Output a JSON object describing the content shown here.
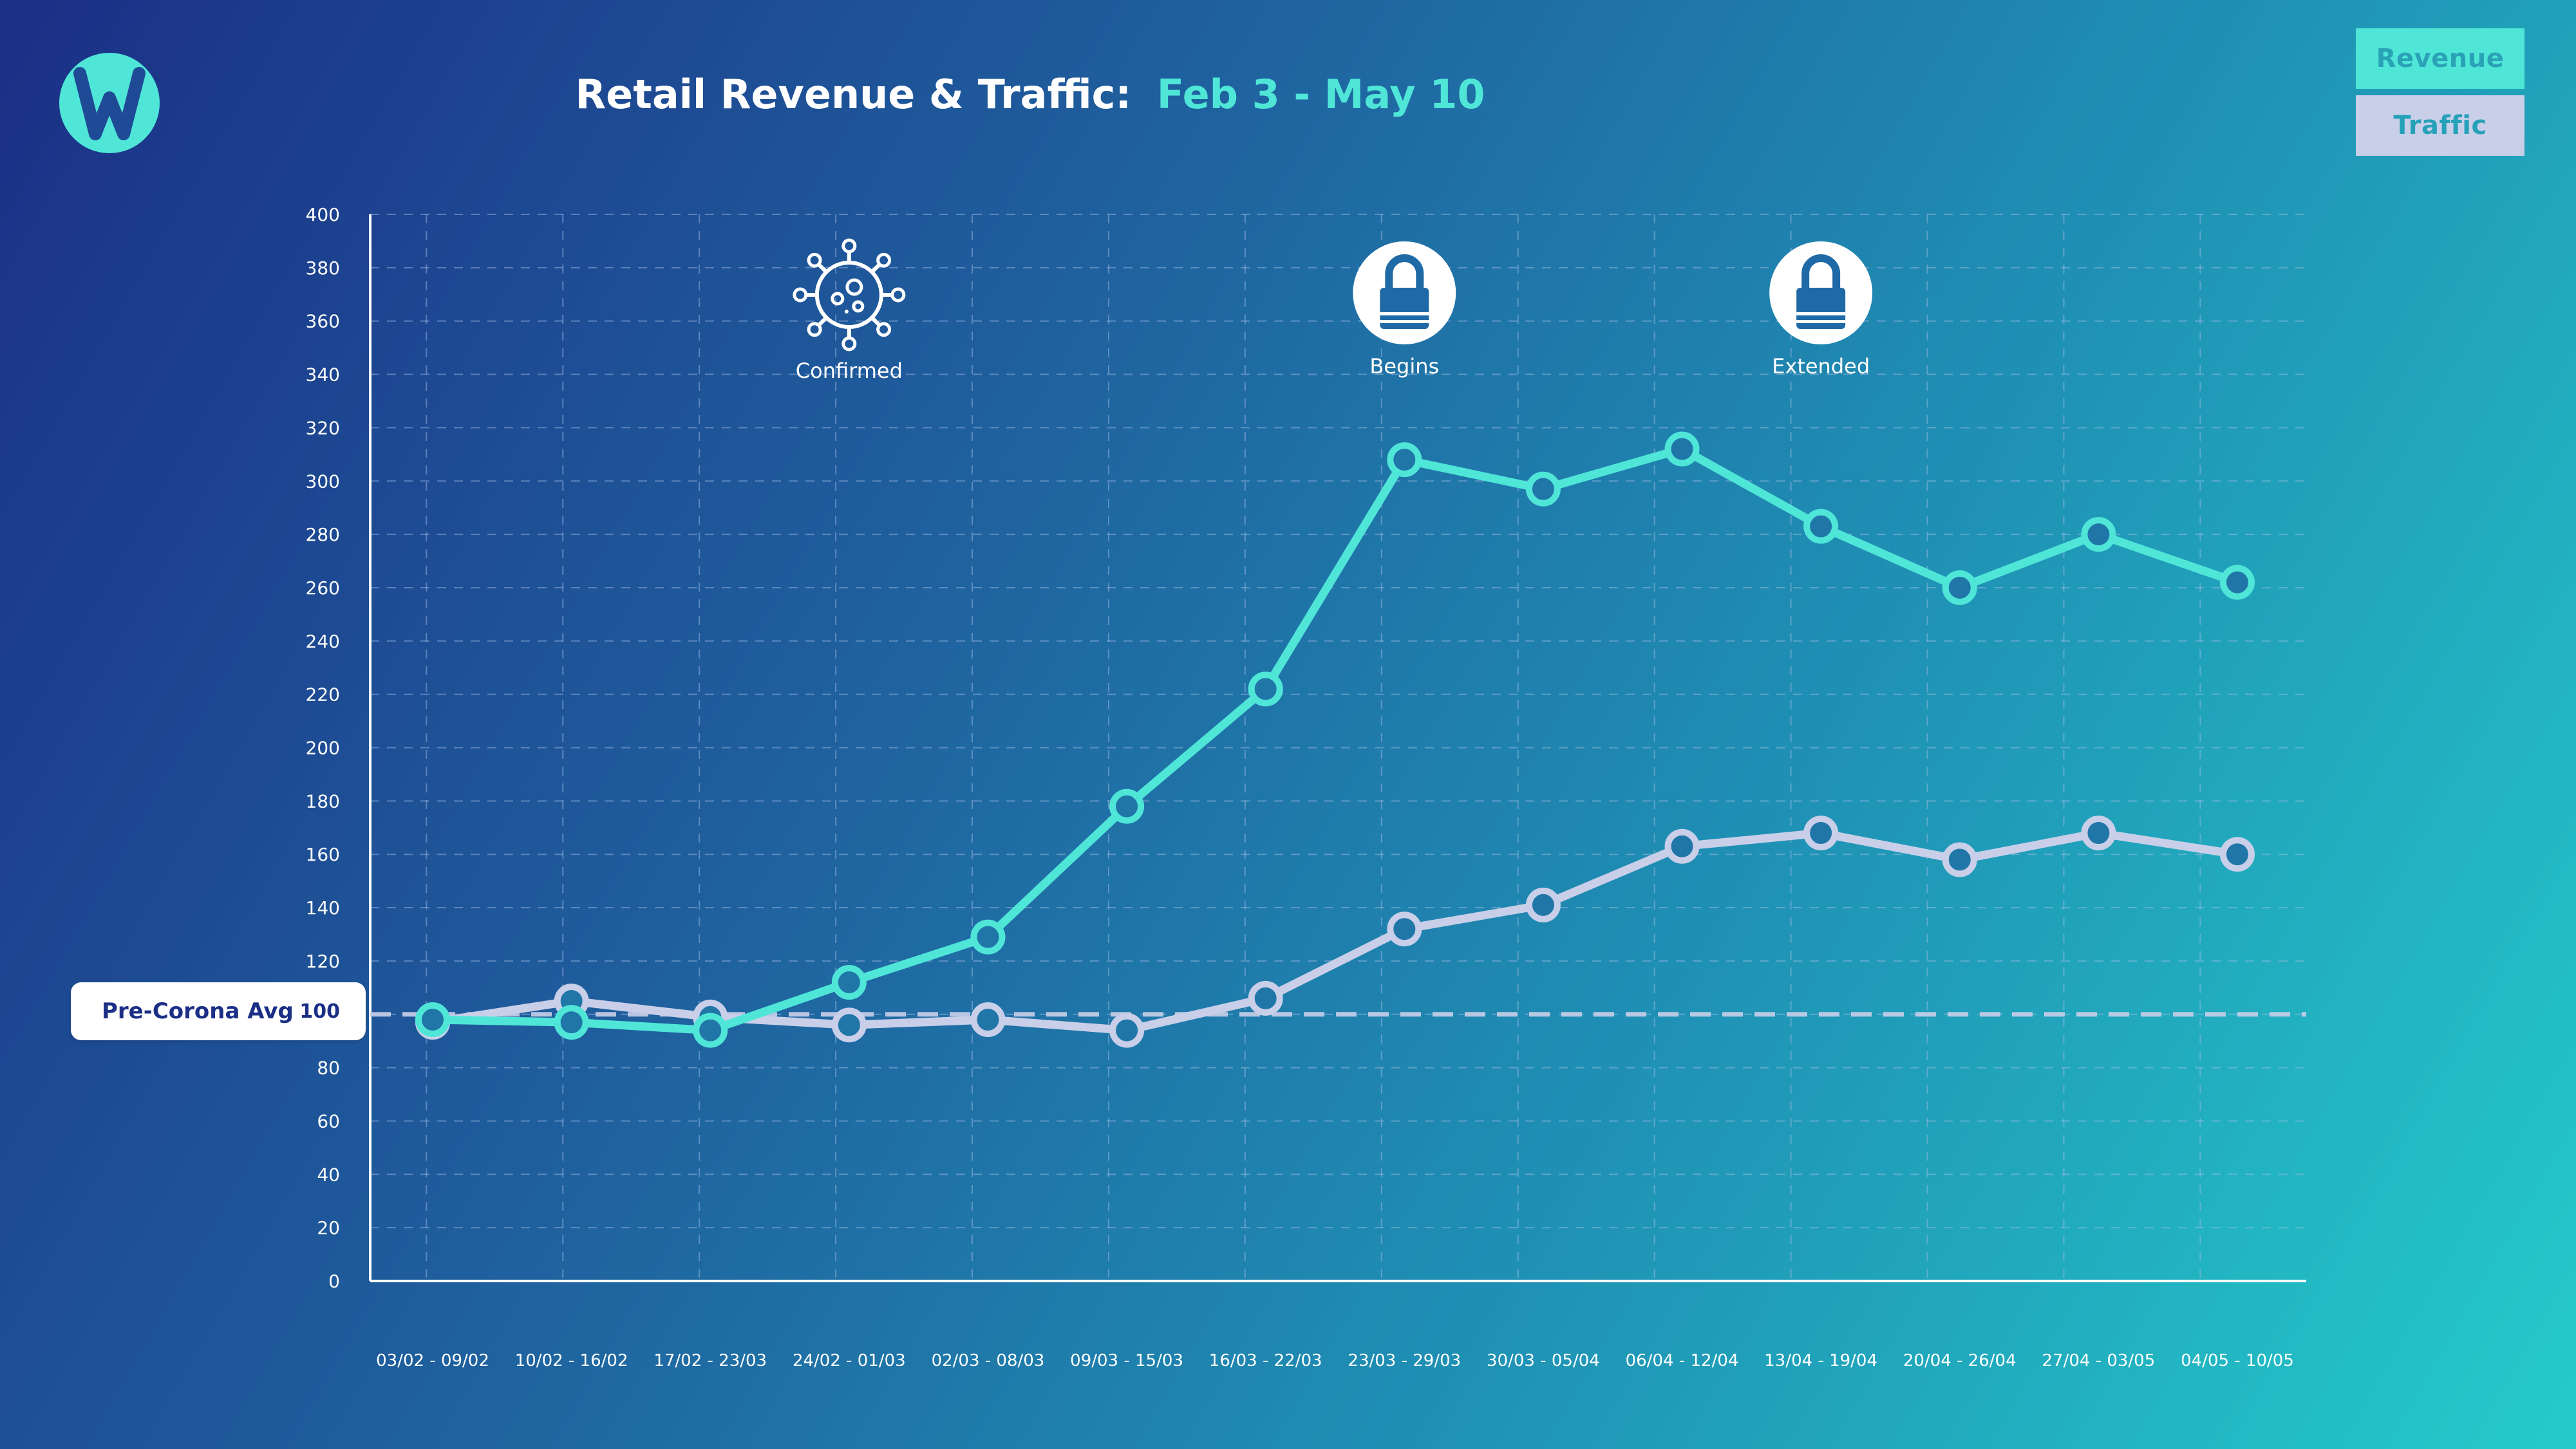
{
  "title": {
    "prefix": "Retail Revenue & Traffic:",
    "accent": "Feb 3 - May 10"
  },
  "legend": {
    "revenue": "Revenue",
    "traffic": "Traffic"
  },
  "badge": {
    "label": "Pre-Corona Avg",
    "value": "100"
  },
  "colors": {
    "revenue": "#4fe6d8",
    "traffic": "#c9cfe9",
    "grid": "#a9bfe6",
    "axis": "#ffffff"
  },
  "events": [
    {
      "label": "Confirmed",
      "icon": "virus-icon",
      "category_index": 3
    },
    {
      "label": "Begins",
      "icon": "lock-icon",
      "category_index": 7
    },
    {
      "label": "Extended",
      "icon": "lock-icon",
      "category_index": 10
    }
  ],
  "chart_data": {
    "type": "line",
    "title": "Retail Revenue & Traffic: Feb 3 - May 10",
    "xlabel": "",
    "ylabel": "",
    "ylim": [
      0,
      400
    ],
    "yticks": [
      0,
      20,
      40,
      60,
      80,
      100,
      120,
      140,
      160,
      180,
      200,
      220,
      240,
      260,
      280,
      300,
      320,
      340,
      360,
      380,
      400
    ],
    "categories": [
      "03/02 - 09/02",
      "10/02 - 16/02",
      "17/02 - 23/03",
      "24/02 - 01/03",
      "02/03 - 08/03",
      "09/03 - 15/03",
      "16/03 - 22/03",
      "23/03 - 29/03",
      "30/03 - 05/04",
      "06/04 - 12/04",
      "13/04 - 19/04",
      "20/04 - 26/04",
      "27/04 - 03/05",
      "04/05 - 10/05"
    ],
    "series": [
      {
        "name": "Revenue",
        "values": [
          98,
          97,
          94,
          112,
          129,
          178,
          222,
          308,
          297,
          312,
          283,
          260,
          280,
          262
        ]
      },
      {
        "name": "Traffic",
        "values": [
          97,
          105,
          99,
          96,
          98,
          94,
          106,
          132,
          141,
          163,
          168,
          158,
          168,
          160
        ]
      }
    ],
    "baseline": {
      "label": "Pre-Corona Avg",
      "value": 100
    },
    "grid": true,
    "legend_position": "top-right"
  }
}
